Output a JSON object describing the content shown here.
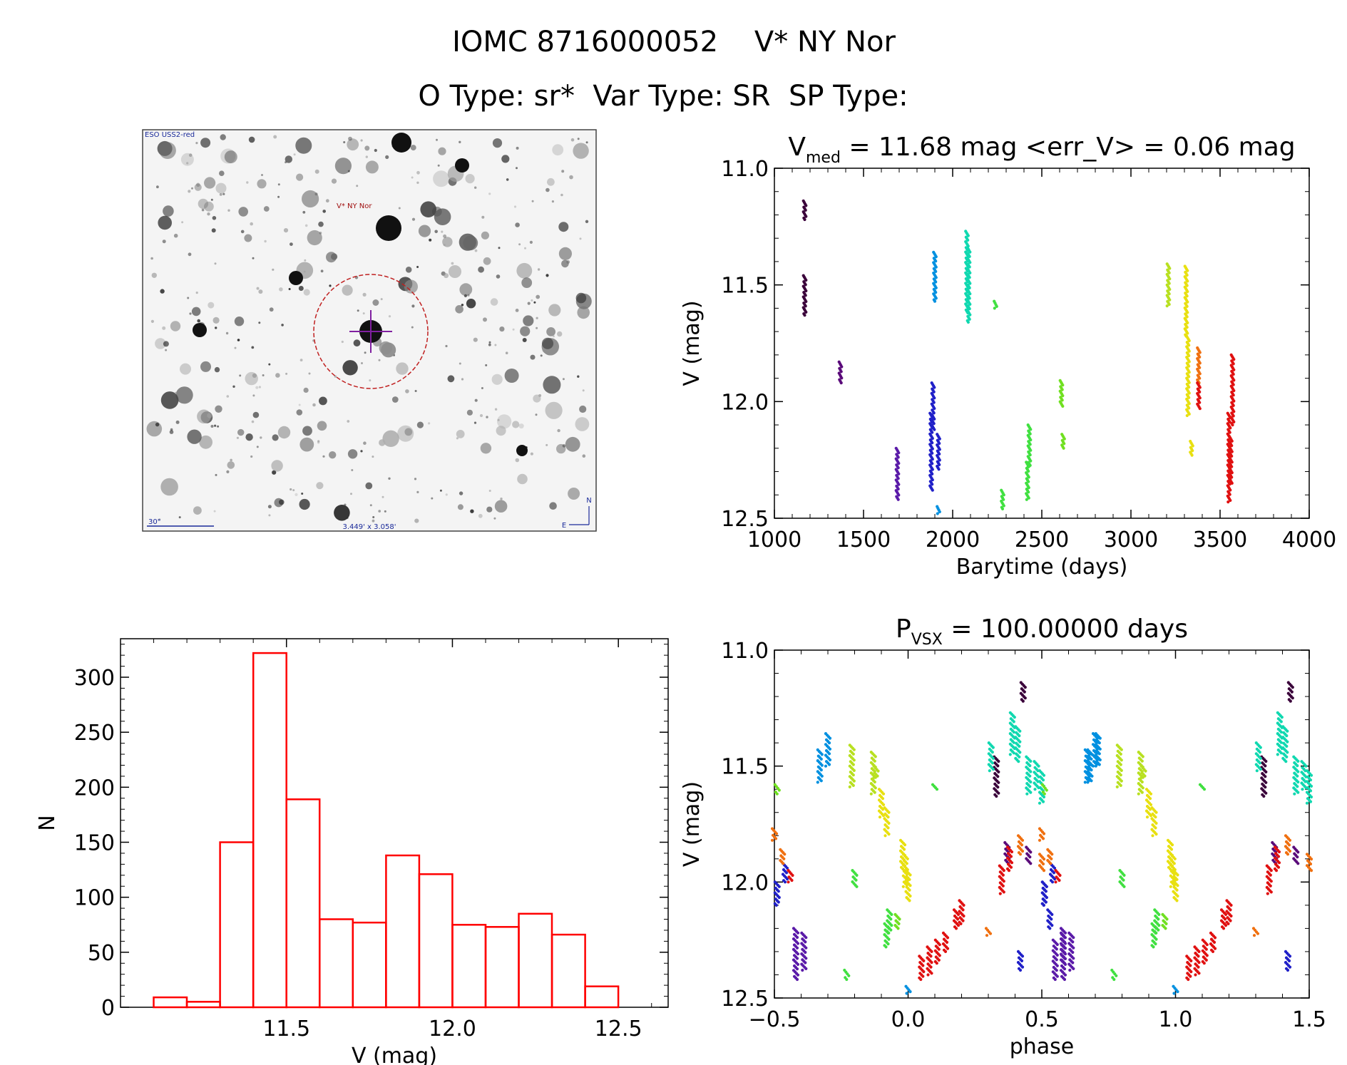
{
  "header": {
    "title": "IOMC 8716000052    V* NY Nor",
    "subtitle": "O Type: sr*  Var Type: SR  SP Type:"
  },
  "image_panel": {
    "survey_label": "ESO USS2-red",
    "star_label": "V* NY Nor",
    "scale_label": "30\"",
    "fov_label": "3.449' x 3.058'",
    "compass_n": "N",
    "compass_e": "E"
  },
  "chart_data": [
    {
      "type": "scatter",
      "title": "V_med = 11.68 mag <err_V> = 0.06 mag",
      "title_parts": {
        "main": "V",
        "sub": "med",
        "rest": " = 11.68 mag <err_V> = 0.06 mag"
      },
      "xlabel": "Barytime (days)",
      "ylabel": "V (mag)",
      "xlim": [
        1000,
        4000
      ],
      "ylim": [
        12.5,
        11.0
      ],
      "y_inverted": true,
      "xticks": [
        "1000",
        "1500",
        "2000",
        "2500",
        "3000",
        "3500",
        "4000"
      ],
      "yticks": [
        "11.0",
        "11.5",
        "12.0",
        "12.5"
      ],
      "series": [
        {
          "color": "#3a003a",
          "x": [
            1170,
            1170
          ],
          "y": [
            [
              11.14,
              11.22
            ],
            [
              11.46,
              11.63
            ]
          ]
        },
        {
          "color": "#5a0a7a",
          "x": [
            1370
          ],
          "y": [
            [
              11.83,
              11.92
            ]
          ]
        },
        {
          "color": "#5a1aa8",
          "x": [
            1690
          ],
          "y": [
            [
              12.2,
              12.42
            ]
          ]
        },
        {
          "color": "#2020c8",
          "x": [
            1880,
            1890,
            1920
          ],
          "y": [
            [
              12.05,
              12.38
            ],
            [
              11.92,
              12.12
            ],
            [
              12.14,
              12.29
            ]
          ]
        },
        {
          "color": "#0090e0",
          "x": [
            1900,
            1920
          ],
          "y": [
            [
              11.36,
              11.57
            ],
            [
              12.45,
              12.48
            ]
          ]
        },
        {
          "color": "#10d8b0",
          "x": [
            2080,
            2090
          ],
          "y": [
            [
              11.27,
              11.62
            ],
            [
              11.34,
              11.66
            ]
          ]
        },
        {
          "color": "#40e040",
          "x": [
            2240,
            2280,
            2420,
            2430
          ],
          "y": [
            [
              11.57,
              11.6
            ],
            [
              12.38,
              12.46
            ],
            [
              12.26,
              12.42
            ],
            [
              12.1,
              12.28
            ]
          ]
        },
        {
          "color": "#70e020",
          "x": [
            2610,
            2620
          ],
          "y": [
            [
              11.91,
              12.02
            ],
            [
              12.14,
              12.2
            ]
          ]
        },
        {
          "color": "#b8e020",
          "x": [
            3210
          ],
          "y": [
            [
              11.41,
              11.59
            ]
          ]
        },
        {
          "color": "#e8e010",
          "x": [
            3310,
            3320,
            3340
          ],
          "y": [
            [
              11.42,
              11.72
            ],
            [
              11.72,
              12.06
            ],
            [
              12.17,
              12.23
            ]
          ]
        },
        {
          "color": "#f07010",
          "x": [
            3380
          ],
          "y": [
            [
              11.77,
              11.92
            ]
          ]
        },
        {
          "color": "#e01010",
          "x": [
            3380,
            3550,
            3560,
            3570
          ],
          "y": [
            [
              11.92,
              12.03
            ],
            [
              12.05,
              12.43
            ],
            [
              12.15,
              12.35
            ],
            [
              11.8,
              12.1
            ]
          ]
        }
      ]
    },
    {
      "type": "bar",
      "title": "",
      "xlabel": "V (mag)",
      "ylabel": "N",
      "xlim": [
        11.0,
        12.65
      ],
      "ylim": [
        0,
        335
      ],
      "xticks": [
        "11.5",
        "12.0",
        "12.5"
      ],
      "yticks": [
        "0",
        "50",
        "100",
        "150",
        "200",
        "250",
        "300"
      ],
      "bin_edges": [
        11.1,
        11.2,
        11.3,
        11.4,
        11.5,
        11.6,
        11.7,
        11.8,
        11.9,
        12.0,
        12.1,
        12.2,
        12.3,
        12.4,
        12.5
      ],
      "values": [
        9,
        5,
        150,
        322,
        189,
        80,
        77,
        138,
        121,
        75,
        73,
        85,
        66,
        19
      ],
      "color": "#ff0000"
    },
    {
      "type": "scatter",
      "title": "P_VSX = 100.00000 days",
      "title_parts": {
        "main": "P",
        "sub": "VSX",
        "rest": " = 100.00000 days"
      },
      "xlabel": "phase",
      "ylabel": "V (mag)",
      "xlim": [
        -0.5,
        1.5
      ],
      "ylim": [
        12.5,
        11.0
      ],
      "y_inverted": true,
      "xticks": [
        "−0.5",
        "0.0",
        "0.5",
        "1.0",
        "1.5"
      ],
      "yticks": [
        "11.0",
        "11.5",
        "12.0",
        "12.5"
      ],
      "series": [
        {
          "color": "#3a003a",
          "phase": [
            0.33,
            0.43
          ],
          "y": [
            [
              11.46,
              11.63
            ],
            [
              11.14,
              11.22
            ]
          ]
        },
        {
          "color": "#5a0a7a",
          "phase": [
            0.37,
            0.45
          ],
          "y": [
            [
              11.83,
              11.92
            ],
            [
              11.85,
              11.92
            ]
          ]
        },
        {
          "color": "#5a1aa8",
          "phase": [
            -0.42,
            -0.39,
            0.55,
            0.58
          ],
          "y": [
            [
              12.2,
              12.42
            ],
            [
              12.22,
              12.38
            ],
            [
              12.25,
              12.42
            ],
            [
              12.22,
              12.35
            ]
          ]
        },
        {
          "color": "#2020c8",
          "phase": [
            -0.49,
            -0.46,
            0.42,
            0.51,
            0.53
          ],
          "y": [
            [
              12.0,
              12.1
            ],
            [
              11.92,
              12.0
            ],
            [
              12.3,
              12.38
            ],
            [
              12.0,
              12.1
            ],
            [
              12.12,
              12.2
            ]
          ]
        },
        {
          "color": "#0090e0",
          "phase": [
            -0.3,
            -0.33,
            0.0,
            0.68,
            0.71
          ],
          "y": [
            [
              11.36,
              11.5
            ],
            [
              11.43,
              11.57
            ],
            [
              12.45,
              12.48
            ],
            [
              11.43,
              11.57
            ],
            [
              11.36,
              11.5
            ]
          ]
        },
        {
          "color": "#10d8b0",
          "phase": [
            0.31,
            0.39,
            0.41,
            0.45,
            0.48,
            0.5
          ],
          "y": [
            [
              11.4,
              11.52
            ],
            [
              11.27,
              11.45
            ],
            [
              11.33,
              11.48
            ],
            [
              11.46,
              11.62
            ],
            [
              11.48,
              11.6
            ],
            [
              11.52,
              11.66
            ]
          ]
        },
        {
          "color": "#40e040",
          "phase": [
            -0.23,
            -0.2,
            -0.08,
            -0.07,
            0.1
          ],
          "y": [
            [
              12.38,
              12.42
            ],
            [
              11.95,
              12.02
            ],
            [
              12.18,
              12.28
            ],
            [
              12.12,
              12.22
            ],
            [
              11.58,
              11.6
            ]
          ]
        },
        {
          "color": "#70e020",
          "phase": [
            -0.04,
            -0.49
          ],
          "y": [
            [
              12.14,
              12.2
            ],
            [
              11.58,
              11.62
            ]
          ]
        },
        {
          "color": "#b8e020",
          "phase": [
            -0.21,
            -0.13,
            -0.12
          ],
          "y": [
            [
              11.41,
              11.59
            ],
            [
              11.44,
              11.62
            ],
            [
              11.5,
              11.55
            ]
          ]
        },
        {
          "color": "#e8e010",
          "phase": [
            -0.1,
            -0.08,
            -0.02,
            -0.01,
            0.0
          ],
          "y": [
            [
              11.6,
              11.72
            ],
            [
              11.68,
              11.8
            ],
            [
              11.82,
              11.95
            ],
            [
              11.88,
              12.02
            ],
            [
              11.95,
              12.08
            ]
          ]
        },
        {
          "color": "#f07010",
          "phase": [
            -0.5,
            -0.47,
            0.3,
            0.42,
            0.5
          ],
          "y": [
            [
              11.77,
              11.82
            ],
            [
              11.86,
              11.92
            ],
            [
              12.2,
              12.23
            ],
            [
              11.8,
              11.88
            ],
            [
              11.88,
              11.95
            ]
          ]
        },
        {
          "color": "#e01010",
          "phase": [
            -0.44,
            0.05,
            0.08,
            0.11,
            0.14,
            0.18,
            0.2,
            0.35,
            0.38
          ],
          "y": [
            [
              11.95,
              12.0
            ],
            [
              12.32,
              12.42
            ],
            [
              12.28,
              12.4
            ],
            [
              12.25,
              12.35
            ],
            [
              12.22,
              12.3
            ],
            [
              12.12,
              12.2
            ],
            [
              12.08,
              12.18
            ],
            [
              11.93,
              12.05
            ],
            [
              11.85,
              11.95
            ]
          ]
        }
      ]
    }
  ]
}
